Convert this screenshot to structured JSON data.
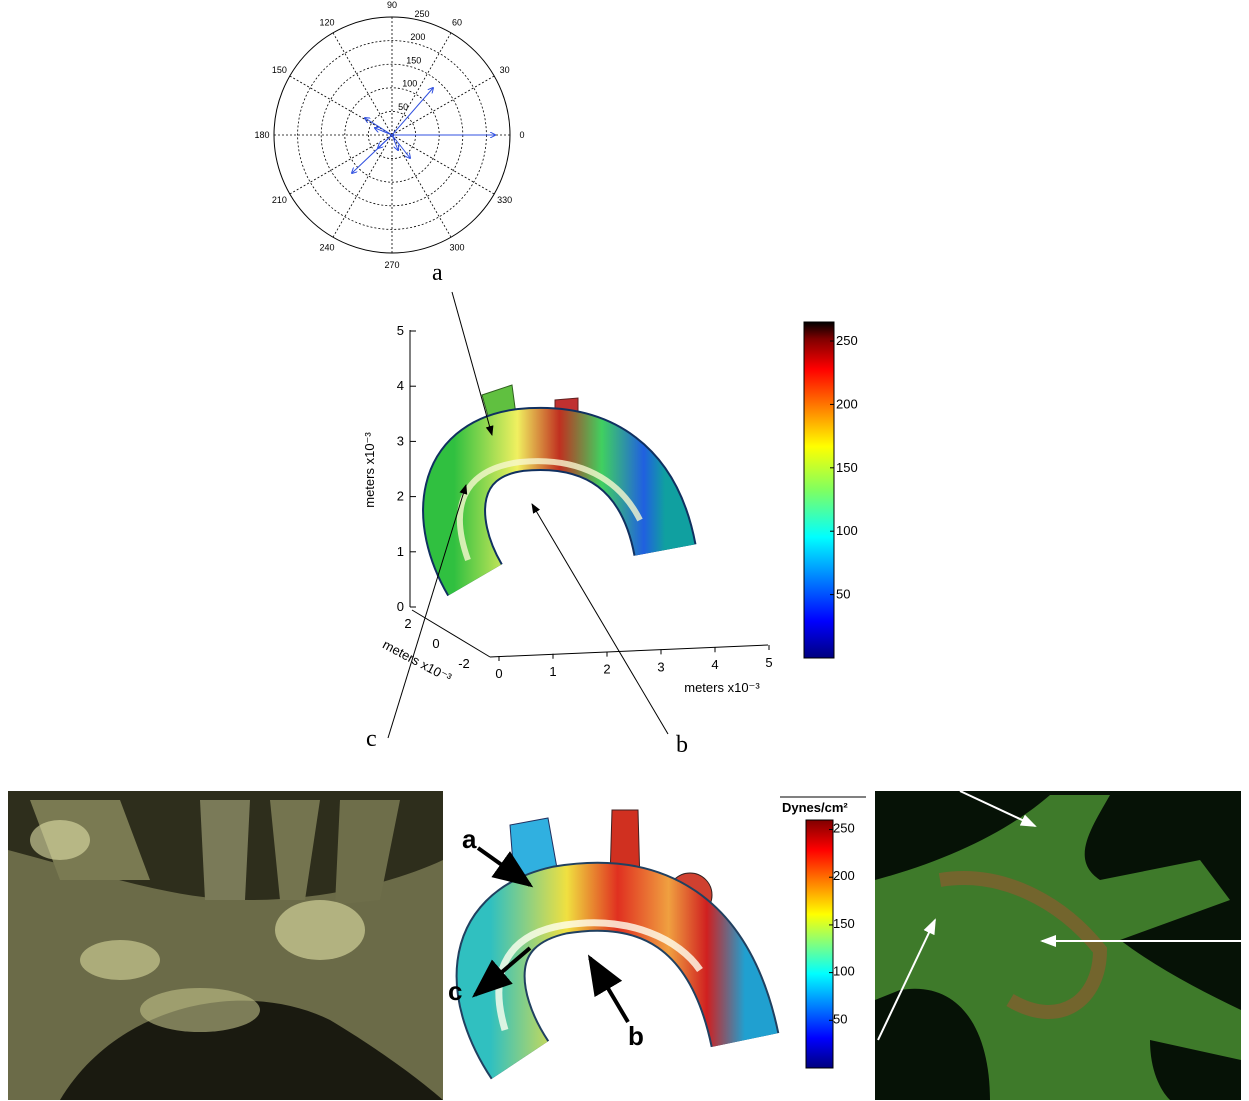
{
  "polar": {
    "angle_labels": [
      0,
      30,
      60,
      90,
      120,
      150,
      180,
      210,
      240,
      270,
      300,
      330
    ],
    "radial_labels": [
      50,
      100,
      150,
      200,
      250
    ]
  },
  "top_plot": {
    "label_a": "a",
    "label_b": "b",
    "label_c": "c",
    "z_ticks": [
      0,
      1,
      2,
      3,
      4,
      5
    ],
    "x_ticks": [
      0,
      1,
      2,
      3,
      4,
      5
    ],
    "y_ticks": [
      2,
      0,
      -2
    ],
    "z_label": "meters x10⁻³",
    "x_label": "meters x10⁻³",
    "y_label": "meters x10⁻³",
    "colorbar_ticks": [
      250,
      200,
      150,
      100,
      50
    ]
  },
  "bottom_middle": {
    "label_a": "a",
    "label_c": "c",
    "label_b": "b",
    "colorbar_title": "Dynes/cm²",
    "colorbar_ticks": [
      250,
      200,
      150,
      100,
      50
    ]
  }
}
